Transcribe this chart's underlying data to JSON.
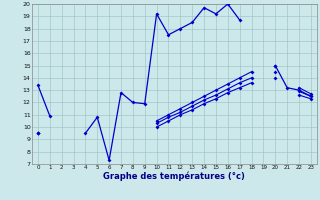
{
  "background_color": "#cce8ea",
  "line_color": "#0000cc",
  "grid_color": "#9bbfbf",
  "xlabel": "Graphe des températures (°c)",
  "hours": [
    0,
    1,
    2,
    3,
    4,
    5,
    6,
    7,
    8,
    9,
    10,
    11,
    12,
    13,
    14,
    15,
    16,
    17,
    18,
    19,
    20,
    21,
    22,
    23
  ],
  "series_main": [
    13.4,
    10.9,
    null,
    null,
    9.5,
    10.8,
    7.3,
    12.8,
    12.0,
    11.9,
    19.2,
    17.5,
    18.0,
    18.5,
    19.7,
    19.2,
    20.0,
    18.7,
    null,
    null,
    15.0,
    13.2,
    13.0,
    12.5
  ],
  "series_a": [
    9.5,
    null,
    null,
    null,
    null,
    null,
    null,
    null,
    null,
    null,
    10.5,
    11.0,
    11.5,
    12.0,
    12.5,
    13.0,
    13.5,
    14.0,
    14.5,
    null,
    15.0,
    null,
    13.2,
    12.7
  ],
  "series_b": [
    9.5,
    null,
    null,
    null,
    null,
    null,
    null,
    null,
    null,
    null,
    10.3,
    10.8,
    11.2,
    11.7,
    12.2,
    12.6,
    13.1,
    13.6,
    14.0,
    null,
    14.5,
    null,
    12.9,
    12.5
  ],
  "series_c": [
    9.5,
    null,
    null,
    null,
    null,
    null,
    null,
    null,
    null,
    null,
    10.0,
    10.5,
    11.0,
    11.4,
    11.9,
    12.3,
    12.8,
    13.2,
    13.6,
    null,
    14.0,
    null,
    12.6,
    12.3
  ],
  "ylim_min": 7,
  "ylim_max": 20,
  "yticks": [
    7,
    8,
    9,
    10,
    11,
    12,
    13,
    14,
    15,
    16,
    17,
    18,
    19,
    20
  ]
}
